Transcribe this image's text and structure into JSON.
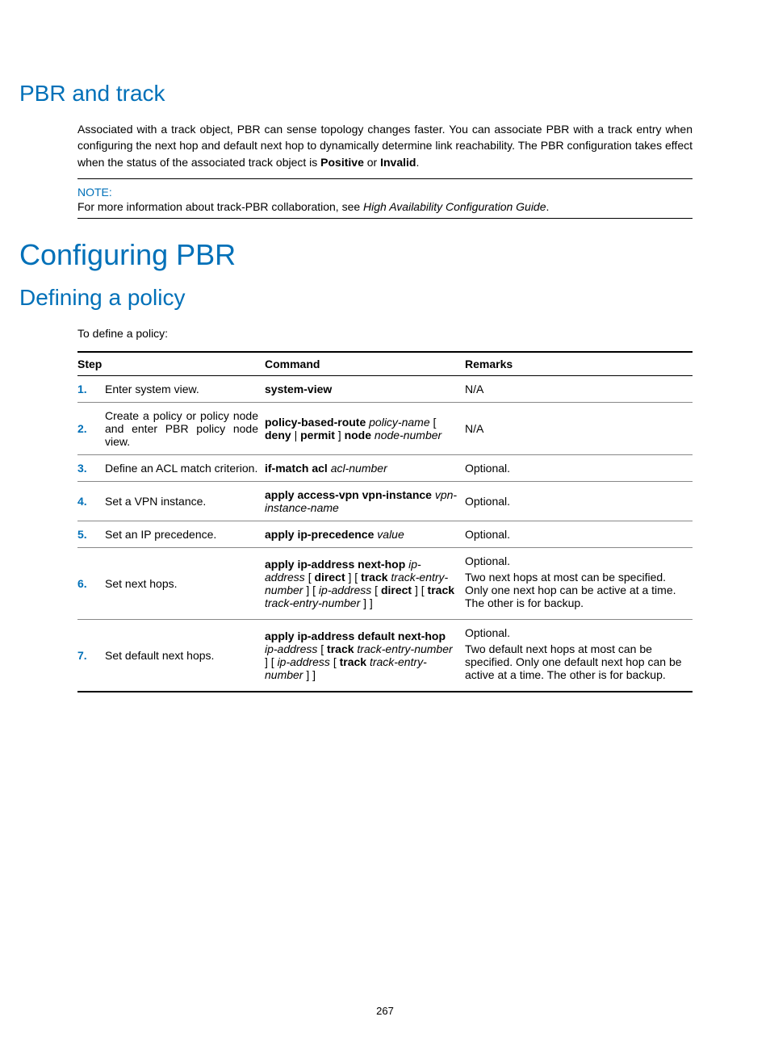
{
  "colors": {
    "accent": "#0070b8",
    "text": "#000000",
    "background": "#ffffff",
    "rule": "#000000",
    "row_rule": "#888888"
  },
  "typography": {
    "body_fontsize": 14,
    "h1_fontsize": 36,
    "h2_fontsize": 28
  },
  "sec1": {
    "title": "PBR and track",
    "para_parts": [
      "Associated with a track object, PBR can sense topology changes faster. You can associate PBR with a track entry when configuring the next hop and default next hop to dynamically determine link reachability. The PBR configuration takes effect when the status of the associated track object is ",
      "Positive",
      " or ",
      "Invalid",
      "."
    ],
    "note_label": "NOTE:",
    "note_pre": "For more information about track-PBR collaboration, see ",
    "note_em": "High Availability Configuration Guide",
    "note_post": "."
  },
  "sec2": {
    "title": "Configuring PBR",
    "subtitle": "Defining a policy",
    "lead": "To define a policy:"
  },
  "table": {
    "headers": {
      "step": "Step",
      "command": "Command",
      "remarks": "Remarks"
    },
    "rows": [
      {
        "num": "1.",
        "step": "Enter system view.",
        "cmd_html": "<b>system-view</b>",
        "remarks": "N/A"
      },
      {
        "num": "2.",
        "step": "Create a policy or policy node and enter PBR policy node view.",
        "cmd_html": "<b>policy-based-route</b> <i>policy-name</i> [ <b>deny</b> | <b>permit</b> ] <b>node</b> <i>node-number</i>",
        "remarks": "N/A"
      },
      {
        "num": "3.",
        "step": "Define an ACL match criterion.",
        "cmd_html": "<b>if-match acl</b> <i>acl-number</i>",
        "remarks": "Optional."
      },
      {
        "num": "4.",
        "step": "Set a VPN instance.",
        "cmd_html": "<b>apply access-vpn vpn-instance</b> <i>vpn-instance-name</i>",
        "remarks": "Optional."
      },
      {
        "num": "5.",
        "step": "Set an IP precedence.",
        "cmd_html": "<b>apply ip-precedence</b> <i>value</i>",
        "remarks": "Optional."
      },
      {
        "num": "6.",
        "step": "Set next hops.",
        "cmd_html": "<b>apply ip-address next-hop</b> <i>ip-address</i> [ <b>direct</b> ] [ <b>track</b> <i>track-entry-number</i> ] [ <i>ip-address</i> [ <b>direct</b> ] [ <b>track</b> <i>track-entry-number</i> ] ]",
        "remarks1": "Optional.",
        "remarks2": "Two next hops at most can be specified. Only one next hop can be active at a time. The other is for backup."
      },
      {
        "num": "7.",
        "step": "Set default next hops.",
        "cmd_html": "<b>apply ip-address default next-hop</b> <i>ip-address</i> [ <b>track</b> <i>track-entry-number</i> ] [ <i>ip-address</i> [ <b>track</b> <i>track-entry-number</i> ] ]",
        "remarks1": "Optional.",
        "remarks2": "Two default next hops at most can be specified. Only one default next hop can be active at a time. The other is for backup."
      }
    ]
  },
  "page_number": "267"
}
